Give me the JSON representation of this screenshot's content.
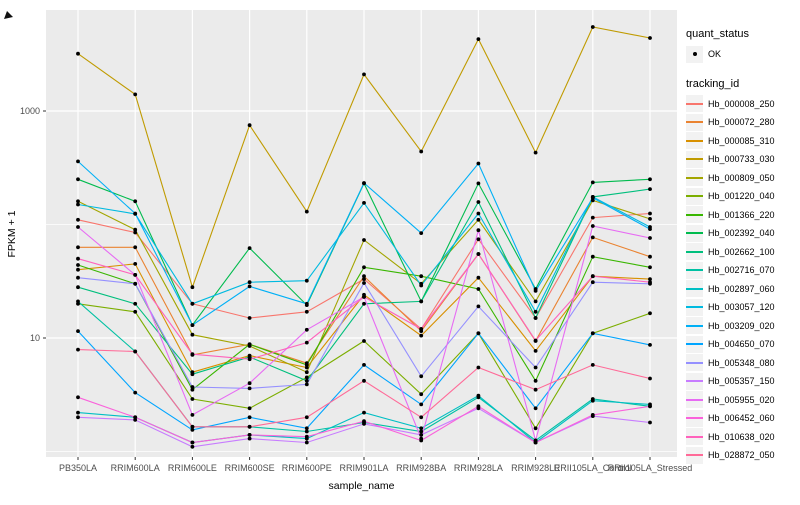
{
  "figure": {
    "y_axis": {
      "title": "FPKM + 1",
      "ticks": [
        {
          "label": "1000",
          "value": 1000
        },
        {
          "label": "10",
          "value": 10
        }
      ]
    },
    "x_axis": {
      "title": "sample_name"
    },
    "legend": {
      "quant_status_title": "quant_status",
      "quant_status_items": [
        {
          "label": "OK"
        }
      ],
      "tracking_id_title": "tracking_id"
    },
    "colors": {
      "panel_bg": "#EBEBEB",
      "grid": "#FFFFFF",
      "tick_text": "#4D4D4D",
      "axis_title": "#000000",
      "point": "#000000",
      "legend_key_bg": "#F2F2F2"
    }
  },
  "chart_data": {
    "type": "line",
    "title": "",
    "xlabel": "sample_name",
    "ylabel": "FPKM + 1",
    "y_scale": "log10",
    "ylim": [
      0.9,
      7800
    ],
    "grid": "on",
    "grid_major": [
      10,
      1000
    ],
    "grid_minor": [
      1,
      100
    ],
    "legend_position": "right",
    "point_marker": "black-dot (quant_status OK)",
    "categories": [
      "PB350LA",
      "RRIM600LA",
      "RRIM600LE",
      "RRIM600SE",
      "RRIM600PE",
      "RRIM901LA",
      "RRIM928BA",
      "RRIM928LA",
      "RRIM928LE",
      "RRII105LA_Control",
      "RRII105LA_Stressed"
    ],
    "series": [
      {
        "name": "Hb_000008_250",
        "color": "#F8766D",
        "values": [
          110,
          85,
          20,
          15,
          17,
          33,
          12,
          74,
          15,
          115,
          125
        ]
      },
      {
        "name": "Hb_000072_280",
        "color": "#EA8331",
        "values": [
          63,
          63,
          7.1,
          8.8,
          6.0,
          35,
          11.5,
          55,
          9.4,
          77,
          52
        ]
      },
      {
        "name": "Hb_000085_310",
        "color": "#D89000",
        "values": [
          40,
          45,
          5.0,
          7.0,
          5.5,
          24,
          10.5,
          34,
          7.7,
          35,
          33
        ]
      },
      {
        "name": "Hb_000733_030",
        "color": "#C09B00",
        "values": [
          3200,
          1400,
          28,
          750,
          130,
          2100,
          440,
          4300,
          430,
          5500,
          4400
        ]
      },
      {
        "name": "Hb_000809_050",
        "color": "#A3A500",
        "values": [
          160,
          90,
          10.7,
          8.5,
          5.0,
          73,
          30,
          110,
          21,
          163,
          112
        ]
      },
      {
        "name": "Hb_001220_040",
        "color": "#7CAE00",
        "values": [
          20,
          17,
          2.9,
          2.4,
          4.5,
          9.4,
          3.2,
          11,
          1.6,
          11,
          16.5
        ]
      },
      {
        "name": "Hb_001366_220",
        "color": "#39B600",
        "values": [
          44,
          30,
          3.5,
          8.8,
          5.8,
          42,
          35,
          27,
          4.2,
          52,
          42
        ]
      },
      {
        "name": "Hb_002392_040",
        "color": "#00BB4E",
        "values": [
          250,
          160,
          13,
          62,
          19.5,
          230,
          21,
          230,
          27,
          235,
          250
        ]
      },
      {
        "name": "Hb_002662_100",
        "color": "#00BF7D",
        "values": [
          28,
          20,
          4.8,
          6.8,
          4.2,
          20,
          21,
          158,
          15,
          175,
          205
        ]
      },
      {
        "name": "Hb_002716_070",
        "color": "#00C1A3",
        "values": [
          21,
          7.6,
          1.65,
          1.65,
          1.5,
          1.8,
          1.5,
          3.0,
          1.25,
          2.9,
          2.5
        ]
      },
      {
        "name": "Hb_002897_060",
        "color": "#00BFC4",
        "values": [
          2.2,
          2.0,
          1.2,
          1.4,
          1.3,
          2.2,
          1.6,
          3.1,
          1.2,
          2.8,
          2.6
        ]
      },
      {
        "name": "Hb_003057_120",
        "color": "#00BAE0",
        "values": [
          150,
          124,
          20,
          31,
          32,
          155,
          29,
          125,
          17,
          175,
          95
        ]
      },
      {
        "name": "Hb_003209_020",
        "color": "#00B0F6",
        "values": [
          360,
          125,
          13,
          28.5,
          20,
          232,
          84,
          345,
          26,
          172,
          91
        ]
      },
      {
        "name": "Hb_004650_070",
        "color": "#00A5FF",
        "values": [
          11.5,
          3.3,
          1.55,
          2.0,
          1.6,
          5.8,
          2.6,
          11,
          2.4,
          11,
          8.7
        ]
      },
      {
        "name": "Hb_005348_080",
        "color": "#9590FF",
        "values": [
          34,
          30,
          3.7,
          3.6,
          3.9,
          30.5,
          4.6,
          19,
          5.5,
          31,
          30
        ]
      },
      {
        "name": "Hb_005357_150",
        "color": "#C77CFF",
        "values": [
          2.0,
          1.9,
          1.1,
          1.3,
          1.2,
          1.75,
          1.4,
          2.4,
          1.2,
          2.05,
          1.8
        ]
      },
      {
        "name": "Hb_005955_020",
        "color": "#E76BF3",
        "values": [
          95,
          36,
          2.1,
          4.0,
          11.8,
          23,
          1.3,
          89,
          1.25,
          97,
          76
        ]
      },
      {
        "name": "Hb_006452_060",
        "color": "#FA62DB",
        "values": [
          3.0,
          2.0,
          1.2,
          1.4,
          1.35,
          1.85,
          1.25,
          2.5,
          1.2,
          2.1,
          2.5
        ]
      },
      {
        "name": "Hb_010638_020",
        "color": "#FF62BC",
        "values": [
          50,
          36,
          7.2,
          6.5,
          9.1,
          23,
          12,
          55,
          9.5,
          35,
          31
        ]
      },
      {
        "name": "Hb_028872_050",
        "color": "#FF6A98",
        "values": [
          7.9,
          7.6,
          1.65,
          1.65,
          2.0,
          4.2,
          2.0,
          5.5,
          3.5,
          5.8,
          4.4
        ]
      }
    ]
  }
}
